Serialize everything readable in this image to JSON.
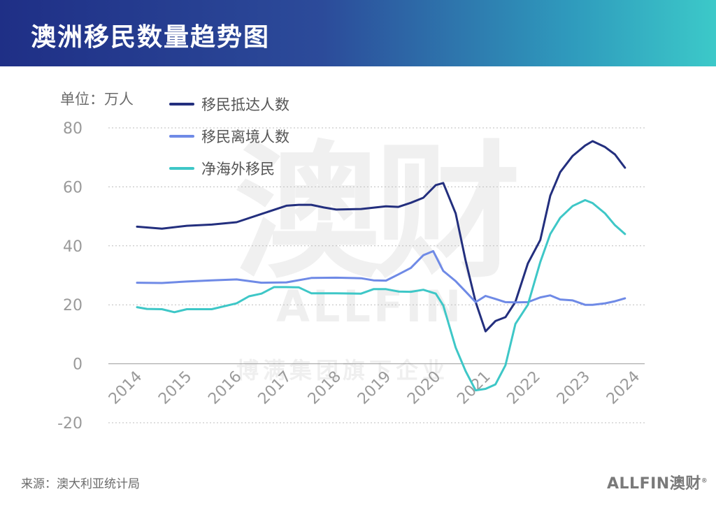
{
  "header": {
    "title": "澳洲移民数量趋势图"
  },
  "unit_label": "单位：万人",
  "source": "来源：澳大利亚统计局",
  "brand": {
    "text": "ALLFIN澳财",
    "mark": "®"
  },
  "watermark": {
    "big": "澳财",
    "latin": "ALLFIN",
    "sub": "博满集团旗下企业"
  },
  "colors": {
    "arrivals": "#232f7e",
    "departures": "#6f8ae6",
    "net": "#3ec7c7",
    "grid": "#bdbdbd",
    "tick": "#9a9a9a"
  },
  "chart_data": {
    "type": "line",
    "title": "澳洲移民数量趋势图",
    "ylabel": "单位：万人",
    "ylim": [
      -20,
      80
    ],
    "yticks": [
      80,
      60,
      40,
      20,
      0,
      -20
    ],
    "xlim": [
      2014,
      2024
    ],
    "xticks": [
      "2014",
      "2015",
      "2016",
      "2017",
      "2018",
      "2019",
      "2020",
      "2021",
      "2022",
      "2023",
      "2024"
    ],
    "grid": true,
    "legend_position": "top-left",
    "series": [
      {
        "name": "移民抵达人数",
        "color": "#232f7e",
        "points": [
          [
            2014.0,
            46.5
          ],
          [
            2014.5,
            45.8
          ],
          [
            2015.0,
            46.8
          ],
          [
            2015.5,
            47.2
          ],
          [
            2016.0,
            48.0
          ],
          [
            2016.5,
            50.8
          ],
          [
            2017.0,
            53.6
          ],
          [
            2017.25,
            53.9
          ],
          [
            2017.5,
            53.9
          ],
          [
            2017.75,
            53.0
          ],
          [
            2018.0,
            52.3
          ],
          [
            2018.5,
            52.5
          ],
          [
            2019.0,
            53.4
          ],
          [
            2019.25,
            53.2
          ],
          [
            2019.5,
            54.6
          ],
          [
            2019.75,
            56.3
          ],
          [
            2020.0,
            60.6
          ],
          [
            2020.15,
            61.3
          ],
          [
            2020.4,
            51.0
          ],
          [
            2020.6,
            35.0
          ],
          [
            2020.8,
            21.0
          ],
          [
            2021.0,
            11.0
          ],
          [
            2021.2,
            14.5
          ],
          [
            2021.4,
            15.8
          ],
          [
            2021.6,
            21.0
          ],
          [
            2021.85,
            34.0
          ],
          [
            2022.1,
            42.0
          ],
          [
            2022.3,
            57.0
          ],
          [
            2022.5,
            65.0
          ],
          [
            2022.75,
            70.5
          ],
          [
            2023.0,
            74.0
          ],
          [
            2023.15,
            75.5
          ],
          [
            2023.4,
            73.5
          ],
          [
            2023.6,
            71.0
          ],
          [
            2023.8,
            66.5
          ]
        ]
      },
      {
        "name": "移民离境人数",
        "color": "#6f8ae6",
        "points": [
          [
            2014.0,
            27.5
          ],
          [
            2014.5,
            27.4
          ],
          [
            2015.0,
            27.9
          ],
          [
            2015.5,
            28.3
          ],
          [
            2016.0,
            28.6
          ],
          [
            2016.5,
            27.5
          ],
          [
            2017.0,
            27.6
          ],
          [
            2017.5,
            29.1
          ],
          [
            2018.0,
            29.2
          ],
          [
            2018.5,
            29.0
          ],
          [
            2018.75,
            28.3
          ],
          [
            2019.0,
            28.2
          ],
          [
            2019.25,
            30.3
          ],
          [
            2019.5,
            32.5
          ],
          [
            2019.75,
            36.8
          ],
          [
            2019.95,
            38.2
          ],
          [
            2020.15,
            31.5
          ],
          [
            2020.4,
            28.0
          ],
          [
            2020.6,
            24.5
          ],
          [
            2020.8,
            20.9
          ],
          [
            2021.0,
            23.0
          ],
          [
            2021.2,
            22.0
          ],
          [
            2021.4,
            20.9
          ],
          [
            2021.6,
            20.8
          ],
          [
            2021.85,
            20.9
          ],
          [
            2022.1,
            22.5
          ],
          [
            2022.3,
            23.2
          ],
          [
            2022.5,
            21.8
          ],
          [
            2022.75,
            21.5
          ],
          [
            2023.0,
            20.0
          ],
          [
            2023.15,
            20.0
          ],
          [
            2023.4,
            20.5
          ],
          [
            2023.6,
            21.2
          ],
          [
            2023.8,
            22.2
          ]
        ]
      },
      {
        "name": "净海外移民",
        "color": "#3ec7c7",
        "points": [
          [
            2014.0,
            19.2
          ],
          [
            2014.2,
            18.6
          ],
          [
            2014.5,
            18.5
          ],
          [
            2014.75,
            17.5
          ],
          [
            2015.0,
            18.5
          ],
          [
            2015.5,
            18.5
          ],
          [
            2016.0,
            20.5
          ],
          [
            2016.25,
            22.9
          ],
          [
            2016.5,
            23.8
          ],
          [
            2016.75,
            26.0
          ],
          [
            2017.0,
            26.0
          ],
          [
            2017.25,
            25.9
          ],
          [
            2017.5,
            23.9
          ],
          [
            2018.0,
            23.9
          ],
          [
            2018.5,
            23.8
          ],
          [
            2018.75,
            25.3
          ],
          [
            2019.0,
            25.3
          ],
          [
            2019.25,
            24.5
          ],
          [
            2019.5,
            24.4
          ],
          [
            2019.75,
            25.1
          ],
          [
            2020.0,
            23.8
          ],
          [
            2020.15,
            19.8
          ],
          [
            2020.4,
            5.5
          ],
          [
            2020.6,
            -2.5
          ],
          [
            2020.8,
            -9.0
          ],
          [
            2021.0,
            -8.5
          ],
          [
            2021.2,
            -7.0
          ],
          [
            2021.4,
            -0.5
          ],
          [
            2021.6,
            13.5
          ],
          [
            2021.85,
            20.0
          ],
          [
            2022.1,
            34.5
          ],
          [
            2022.3,
            44.0
          ],
          [
            2022.5,
            49.5
          ],
          [
            2022.75,
            53.5
          ],
          [
            2023.0,
            55.5
          ],
          [
            2023.15,
            54.5
          ],
          [
            2023.4,
            51.0
          ],
          [
            2023.6,
            47.0
          ],
          [
            2023.8,
            44.0
          ]
        ]
      }
    ]
  }
}
